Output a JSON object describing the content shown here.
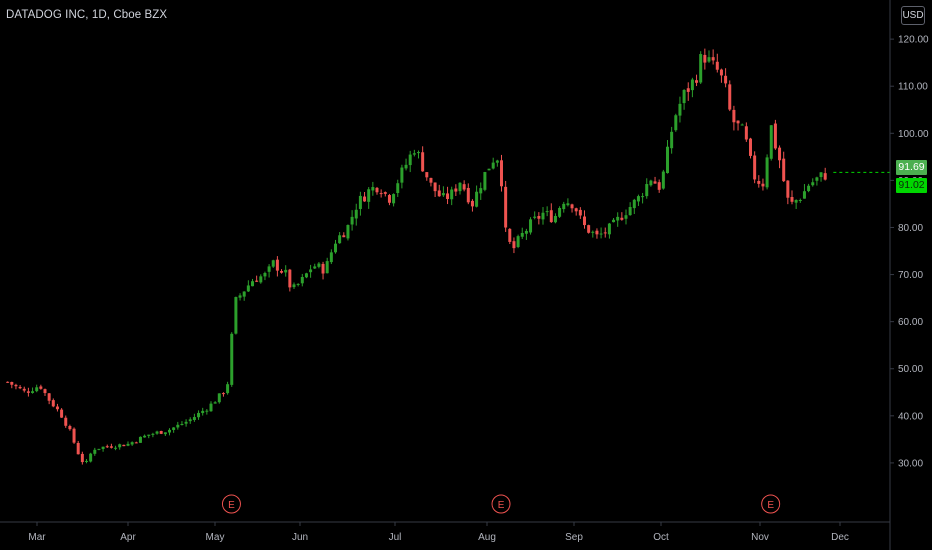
{
  "header": {
    "symbol_title": "DATADOG INC, 1D, Cboe BZX",
    "currency": "USD"
  },
  "price_tags": {
    "last": "91.69",
    "close": "91.02"
  },
  "colors": {
    "background": "#000000",
    "up": "#26a69a",
    "up_body": "#2ca02c",
    "down": "#ef5350",
    "axis_text": "#b2b5be",
    "axis_line": "#363a45",
    "last_tag": "#4caf50",
    "close_tag": "#00d600",
    "earnings": "#f05350"
  },
  "chart_data": {
    "type": "candlestick",
    "y_axis": {
      "ticks": [
        "120.00",
        "110.00",
        "100.00",
        "90.00",
        "80.00",
        "70.00",
        "60.00",
        "50.00",
        "40.00",
        "30.00"
      ],
      "ylim": [
        20,
        123
      ]
    },
    "x_axis": {
      "ticks": [
        "Mar",
        "Apr",
        "May",
        "Jun",
        "Jul",
        "Aug",
        "Sep",
        "Oct",
        "Nov",
        "Dec"
      ]
    },
    "earnings_markers": [
      "E",
      "E",
      "E"
    ],
    "earnings_at": [
      "May 7",
      "Aug 6",
      "Nov 5"
    ],
    "grid": false,
    "price_line": 91.69,
    "series_anchors": [
      [
        "Feb 20",
        47.2
      ],
      [
        "Feb 26",
        45.0
      ],
      [
        "Mar 2",
        46.5
      ],
      [
        "Mar 5",
        43.5
      ],
      [
        "Mar 9",
        40.5
      ],
      [
        "Mar 12",
        37.0
      ],
      [
        "Mar 16",
        30.5
      ],
      [
        "Mar 18",
        30.0
      ],
      [
        "Mar 20",
        33.0
      ],
      [
        "Mar 25",
        33.5
      ],
      [
        "Apr 1",
        34.0
      ],
      [
        "Apr 8",
        36.0
      ],
      [
        "Apr 15",
        37.0
      ],
      [
        "Apr 22",
        39.0
      ],
      [
        "Apr 29",
        42.0
      ],
      [
        "May 4",
        45.0
      ],
      [
        "May 6",
        47.5
      ],
      [
        "May 7",
        56.0
      ],
      [
        "May 8",
        64.0
      ],
      [
        "May 12",
        67.0
      ],
      [
        "May 15",
        69.0
      ],
      [
        "May 20",
        70.0
      ],
      [
        "May 22",
        72.5
      ],
      [
        "May 27",
        70.0
      ],
      [
        "May 29",
        66.5
      ],
      [
        "Jun 2",
        69.0
      ],
      [
        "Jun 5",
        72.0
      ],
      [
        "Jun 9",
        71.0
      ],
      [
        "Jun 12",
        77.0
      ],
      [
        "Jun 16",
        80.0
      ],
      [
        "Jun 19",
        85.0
      ],
      [
        "Jun 23",
        88.0
      ],
      [
        "Jun 26",
        89.0
      ],
      [
        "Jun 29",
        86.0
      ],
      [
        "Jul 2",
        90.0
      ],
      [
        "Jul 6",
        95.0
      ],
      [
        "Jul 8",
        97.5
      ],
      [
        "Jul 9",
        95.0
      ],
      [
        "Jul 13",
        89.0
      ],
      [
        "Jul 17",
        86.0
      ],
      [
        "Jul 20",
        87.0
      ],
      [
        "Jul 23",
        90.0
      ],
      [
        "Jul 27",
        85.0
      ],
      [
        "Jul 31",
        91.0
      ],
      [
        "Aug 3",
        94.5
      ],
      [
        "Aug 5",
        95.0
      ],
      [
        "Aug 6",
        92.0
      ],
      [
        "Aug 7",
        80.0
      ],
      [
        "Aug 10",
        75.0
      ],
      [
        "Aug 13",
        78.0
      ],
      [
        "Aug 17",
        81.0
      ],
      [
        "Aug 21",
        83.0
      ],
      [
        "Aug 25",
        82.0
      ],
      [
        "Aug 28",
        86.0
      ],
      [
        "Sep 1",
        85.0
      ],
      [
        "Sep 4",
        80.5
      ],
      [
        "Sep 9",
        78.0
      ],
      [
        "Sep 14",
        80.0
      ],
      [
        "Sep 18",
        83.0
      ],
      [
        "Sep 23",
        86.0
      ],
      [
        "Sep 28",
        91.0
      ],
      [
        "Sep 30",
        88.0
      ],
      [
        "Oct 2",
        92.0
      ],
      [
        "Oct 5",
        103.0
      ],
      [
        "Oct 8",
        108.0
      ],
      [
        "Oct 12",
        112.0
      ],
      [
        "Oct 14",
        117.0
      ],
      [
        "Oct 15",
        116.0
      ],
      [
        "Oct 19",
        113.0
      ],
      [
        "Oct 21",
        110.0
      ],
      [
        "Oct 23",
        103.0
      ],
      [
        "Oct 27",
        100.0
      ],
      [
        "Oct 29",
        94.0
      ],
      [
        "Oct 30",
        91.0
      ],
      [
        "Nov 2",
        89.0
      ],
      [
        "Nov 4",
        97.0
      ],
      [
        "Nov 5",
        102.0
      ],
      [
        "Nov 6",
        99.0
      ],
      [
        "Nov 9",
        93.0
      ],
      [
        "Nov 11",
        86.0
      ],
      [
        "Nov 13",
        85.0
      ],
      [
        "Nov 17",
        87.0
      ],
      [
        "Nov 19",
        89.0
      ],
      [
        "Nov 23",
        90.5
      ],
      [
        "Nov 25",
        91.2
      ],
      [
        "Nov 27",
        91.0
      ]
    ]
  }
}
